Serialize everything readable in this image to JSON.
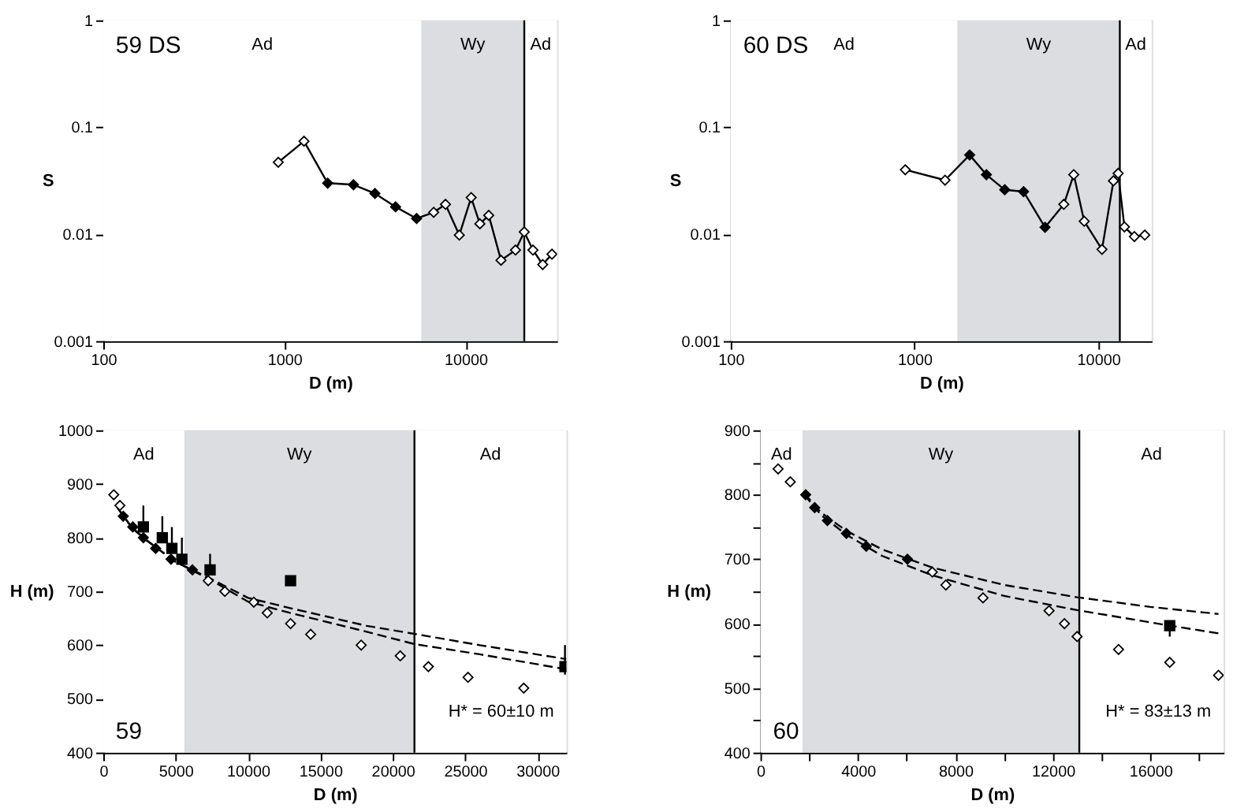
{
  "chart_data": [
    {
      "type": "line",
      "xlabel": "D (m)",
      "ylabel": "S",
      "log": "xy",
      "xlim": [
        100,
        32000
      ],
      "xticks": [
        100,
        1000,
        10000
      ],
      "ylim": [
        0.001,
        1
      ],
      "yticks": [
        0.001,
        0.01,
        0.1,
        1
      ],
      "grid": false,
      "bands": [
        {
          "axis": "x",
          "from": 100,
          "to": 5700,
          "label": "Ad",
          "color": "#ffffff"
        },
        {
          "axis": "x",
          "from": 5700,
          "to": 21100,
          "label": "Wy",
          "color": "#dcdde0"
        },
        {
          "axis": "x",
          "from": 21100,
          "to": 32000,
          "label": "Ad",
          "color": "#ffffff"
        }
      ],
      "ref_lines": [
        {
          "axis": "x",
          "value": 21100,
          "color": "#000000"
        }
      ],
      "annotations": [
        "59 DS"
      ],
      "series": [
        {
          "marker": "diamond",
          "color": "#000000",
          "x": [
            925,
            1283,
            1733,
            2405,
            3162,
            4110,
            5370,
            6670,
            7750,
            9240,
            10740,
            12000,
            13430,
            15700,
            18870,
            21100,
            23560,
            26670,
            30000
          ],
          "values": [
            0.047,
            0.074,
            0.03,
            0.029,
            0.024,
            0.018,
            0.014,
            0.016,
            0.019,
            0.0098,
            0.022,
            0.0125,
            0.015,
            0.0057,
            0.0071,
            0.0105,
            0.0071,
            0.0052,
            0.0065
          ],
          "colors": [
            "#ffffff",
            "#ffffff",
            "#000000",
            "#000000",
            "#000000",
            "#000000",
            "#000000",
            "#ffffff",
            "#ffffff",
            "#ffffff",
            "#ffffff",
            "#ffffff",
            "#ffffff",
            "#ffffff",
            "#ffffff",
            "#ffffff",
            "#ffffff",
            "#ffffff",
            "#ffffff"
          ]
        }
      ]
    },
    {
      "type": "line",
      "xlabel": "D (m)",
      "ylabel": "S",
      "log": "xy",
      "xlim": [
        100,
        19500
      ],
      "xticks": [
        100,
        1000,
        10000
      ],
      "ylim": [
        0.001,
        1
      ],
      "yticks": [
        0.001,
        0.01,
        0.1,
        1
      ],
      "grid": false,
      "bands": [
        {
          "axis": "x",
          "from": 100,
          "to": 1710,
          "label": "Ad",
          "color": "#ffffff"
        },
        {
          "axis": "x",
          "from": 1710,
          "to": 13090,
          "label": "Wy",
          "color": "#dcdde0"
        },
        {
          "axis": "x",
          "from": 13090,
          "to": 19500,
          "label": "Ad",
          "color": "#ffffff"
        }
      ],
      "ref_lines": [
        {
          "axis": "x",
          "value": 13090,
          "color": "#000000"
        }
      ],
      "annotations": [
        "60 DS"
      ],
      "series": [
        {
          "marker": "diamond",
          "color": "#000000",
          "x": [
            891,
            1466,
            1995,
            2460,
            3097,
            3920,
            5130,
            6490,
            7350,
            8380,
            10470,
            12090,
            12820,
            13870,
            15710,
            17900
          ],
          "values": [
            0.04,
            0.032,
            0.055,
            0.036,
            0.026,
            0.025,
            0.0116,
            0.019,
            0.036,
            0.0132,
            0.0072,
            0.0315,
            0.037,
            0.0117,
            0.0095,
            0.0098
          ],
          "colors": [
            "#ffffff",
            "#ffffff",
            "#000000",
            "#000000",
            "#000000",
            "#000000",
            "#000000",
            "#ffffff",
            "#ffffff",
            "#ffffff",
            "#ffffff",
            "#ffffff",
            "#ffffff",
            "#ffffff",
            "#ffffff",
            "#ffffff"
          ]
        }
      ]
    },
    {
      "type": "scatter",
      "xlabel": "D (m)",
      "ylabel": "H (m)",
      "xlim": [
        0,
        32000
      ],
      "xticks": [
        0,
        5000,
        10000,
        15000,
        20000,
        25000,
        30000
      ],
      "ylim": [
        400,
        1000
      ],
      "yticks": [
        400,
        500,
        600,
        700,
        800,
        900,
        1000
      ],
      "grid": false,
      "bands": [
        {
          "axis": "x",
          "from": 0,
          "to": 5600,
          "label": "Ad",
          "color": "#ffffff"
        },
        {
          "axis": "x",
          "from": 5600,
          "to": 21500,
          "label": "Wy",
          "color": "#dcdde0"
        },
        {
          "axis": "x",
          "from": 21500,
          "to": 32000,
          "label": "Ad",
          "color": "#ffffff"
        }
      ],
      "ref_lines": [
        {
          "axis": "x",
          "value": 21500,
          "color": "#000000"
        }
      ],
      "annotations": [
        "59",
        "H* = 60±10 m"
      ],
      "series": [
        {
          "type": "line",
          "marker": "none",
          "line_style": "dashed",
          "color": "#000000",
          "x": [
            1000,
            2000,
            3000,
            5000,
            7250,
            10000,
            12900,
            18200,
            21500,
            26000,
            32000
          ],
          "values": [
            855,
            818,
            795,
            755,
            726,
            688,
            669,
            636,
            621,
            600,
            574
          ]
        },
        {
          "type": "line",
          "marker": "none",
          "line_style": "dashed",
          "color": "#000000",
          "x": [
            1000,
            2000,
            3000,
            5000,
            7250,
            10000,
            12900,
            18200,
            21500,
            26000,
            32000
          ],
          "values": [
            855,
            818,
            795,
            755,
            724,
            681,
            660,
            625,
            602,
            583,
            555
          ]
        },
        {
          "marker": "diamond",
          "color": "#000000",
          "x": [
            725,
            1150,
            7250,
            8400,
            10400,
            11330,
            12940,
            14330,
            17820,
            20520,
            22460,
            25200,
            29050
          ],
          "values": [
            880,
            860,
            720,
            700,
            680,
            660,
            640,
            620,
            600,
            580,
            560,
            540,
            520
          ],
          "colors": [
            "#ffffff",
            "#ffffff",
            "#ffffff",
            "#ffffff",
            "#ffffff",
            "#ffffff",
            "#ffffff",
            "#ffffff",
            "#ffffff",
            "#ffffff",
            "#ffffff",
            "#ffffff",
            "#ffffff"
          ]
        },
        {
          "marker": "diamond",
          "color": "#000000",
          "x": [
            1380,
            2040,
            2770,
            3620,
            4680,
            6160
          ],
          "values": [
            840,
            820,
            800,
            780,
            760,
            740
          ],
          "colors": [
            "#000000",
            "#000000",
            "#000000",
            "#000000",
            "#000000",
            "#000000"
          ]
        },
        {
          "marker": "square",
          "color": "#000000",
          "x": [
            2770,
            4080,
            4740,
            5430,
            7380,
            12940,
            31900
          ],
          "values": [
            820,
            800,
            780,
            760,
            740,
            720,
            560
          ],
          "errors": [
            [
              820,
              860
            ],
            [
              800,
              840
            ],
            [
              780,
              820
            ],
            [
              760,
              800
            ],
            [
              740,
              770
            ],
            null,
            [
              545,
              600
            ]
          ],
          "colors": [
            "#000000",
            "#000000",
            "#000000",
            "#000000",
            "#000000",
            "#000000",
            "#000000"
          ]
        }
      ]
    },
    {
      "type": "scatter",
      "xlabel": "D (m)",
      "ylabel": "H (m)",
      "xlim": [
        0,
        19000
      ],
      "xticks": [
        0,
        {
          "value": 2000,
          "label": null
        },
        4000,
        {
          "value": 6000,
          "label": null
        },
        8000,
        {
          "value": 10000,
          "label": null
        },
        12000,
        {
          "value": 14000,
          "label": null
        },
        16000,
        {
          "value": 18000,
          "label": null
        }
      ],
      "ylim": [
        400,
        900
      ],
      "yticks": [
        400,
        {
          "value": 450,
          "label": null
        },
        500,
        {
          "value": 550,
          "label": null
        },
        600,
        {
          "value": 650,
          "label": null
        },
        700,
        {
          "value": 750,
          "label": null
        },
        800,
        {
          "value": 850,
          "label": null
        },
        900
      ],
      "grid": false,
      "bands": [
        {
          "axis": "x",
          "from": 0,
          "to": 1725,
          "label": "Ad",
          "color": "#ffffff"
        },
        {
          "axis": "x",
          "from": 1725,
          "to": 13080,
          "label": "Wy",
          "color": "#dcdde0"
        },
        {
          "axis": "x",
          "from": 13080,
          "to": 19000,
          "label": "Ad",
          "color": "#ffffff"
        }
      ],
      "ref_lines": [
        {
          "axis": "x",
          "value": 13080,
          "color": "#000000"
        }
      ],
      "annotations": [
        "60",
        "H* = 83±13 m"
      ],
      "series": [
        {
          "type": "line",
          "marker": "none",
          "line_style": "dashed",
          "color": "#000000",
          "x": [
            1800,
            2500,
            3525,
            5000,
            7050,
            10000,
            12990,
            16000,
            18790
          ],
          "values": [
            802,
            772,
            744,
            715,
            687,
            660,
            641,
            626,
            615
          ]
        },
        {
          "type": "line",
          "marker": "none",
          "line_style": "dashed",
          "color": "#000000",
          "x": [
            1800,
            2500,
            3525,
            5000,
            7050,
            10000,
            12990,
            16790,
            18790
          ],
          "values": [
            800,
            768,
            738,
            705,
            675,
            643,
            621,
            597,
            585
          ]
        },
        {
          "marker": "diamond",
          "color": "#000000",
          "x": [
            724,
            1225,
            7050,
            7607,
            9130,
            11840,
            12470,
            12990,
            14690,
            16790,
            18790
          ],
          "values": [
            840,
            820,
            680,
            660,
            640,
            620,
            600,
            580,
            560,
            540,
            520
          ],
          "colors": [
            "#ffffff",
            "#ffffff",
            "#ffffff",
            "#ffffff",
            "#ffffff",
            "#ffffff",
            "#ffffff",
            "#ffffff",
            "#ffffff",
            "#ffffff",
            "#ffffff"
          ]
        },
        {
          "marker": "diamond",
          "color": "#000000",
          "x": [
            1855,
            2226,
            2746,
            3525,
            4340,
            6030
          ],
          "values": [
            800,
            780,
            760,
            740,
            720,
            700
          ],
          "colors": [
            "#000000",
            "#000000",
            "#000000",
            "#000000",
            "#000000",
            "#000000"
          ]
        },
        {
          "marker": "square",
          "color": "#000000",
          "x": [
            16790
          ],
          "values": [
            597
          ],
          "errors": [
            [
              580,
              597
            ]
          ],
          "colors": [
            "#000000"
          ]
        }
      ]
    }
  ]
}
